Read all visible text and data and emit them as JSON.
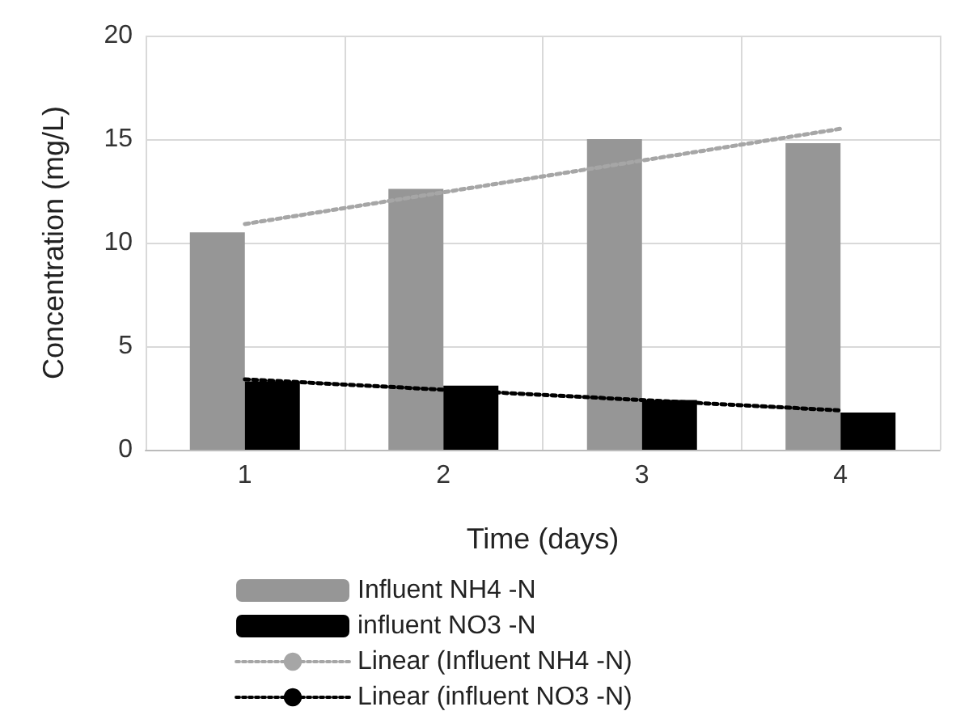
{
  "chart_data": {
    "type": "bar",
    "xlabel": "Time (days)",
    "ylabel": "Concentration (mg/L)",
    "categories": [
      "1",
      "2",
      "3",
      "4"
    ],
    "series": [
      {
        "name": "Influent NH4 -N",
        "color": "#969696",
        "values": [
          10.5,
          12.6,
          15.0,
          14.8
        ]
      },
      {
        "name": "influent NO3 -N",
        "color": "#000000",
        "values": [
          3.3,
          3.1,
          2.4,
          1.8
        ]
      },
      {
        "name": "Linear (Influent NH4 -N)",
        "type": "line",
        "color": "#a6a6a6",
        "x": [
          "1",
          "4"
        ],
        "values": [
          10.9,
          15.5
        ],
        "line_style": "dotted",
        "marker": "none"
      },
      {
        "name": "Linear (influent NO3 -N)",
        "type": "line",
        "color": "#000000",
        "x": [
          "1",
          "4"
        ],
        "values": [
          3.4,
          1.9
        ],
        "line_style": "dotted",
        "marker": "none"
      }
    ],
    "ylim": [
      0,
      20
    ],
    "yticks": [
      0,
      5,
      10,
      15,
      20
    ],
    "grid": true,
    "legend": "bottom"
  }
}
